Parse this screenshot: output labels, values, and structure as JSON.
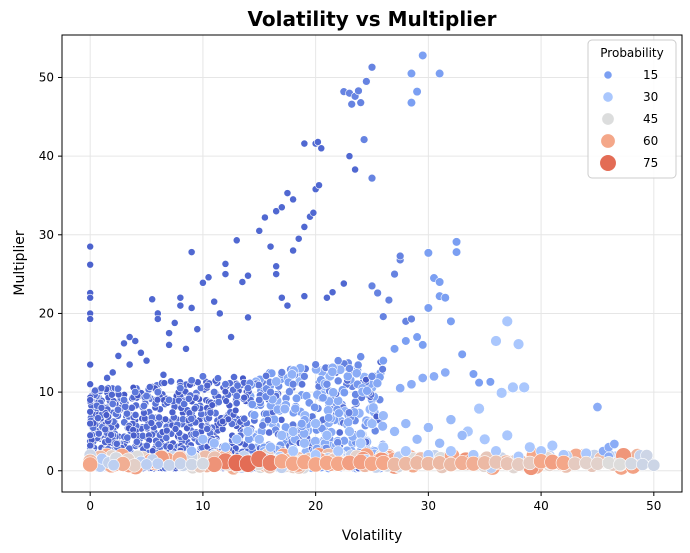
{
  "chart_data": {
    "type": "scatter",
    "title": "Volatility vs Multiplier",
    "xlabel": "Volatility",
    "ylabel": "Multiplier",
    "xlim": [
      -2.5,
      52.5
    ],
    "ylim": [
      -2.7,
      55.4
    ],
    "xticks": [
      0,
      10,
      20,
      30,
      40,
      50
    ],
    "yticks": [
      0,
      10,
      20,
      30,
      40,
      50
    ],
    "grid": true,
    "legend": {
      "title": "Probability",
      "placement": "top-right",
      "entries": [
        {
          "label": "15",
          "value": 15,
          "color": "#7b9ff2"
        },
        {
          "label": "30",
          "value": 30,
          "color": "#aac7fd"
        },
        {
          "label": "45",
          "value": 45,
          "color": "#dcdddd"
        },
        {
          "label": "60",
          "value": 60,
          "color": "#f4a789"
        },
        {
          "label": "75",
          "value": 75,
          "color": "#e36c55"
        }
      ]
    },
    "colormap": "coolwarm",
    "series": [
      {
        "encoding": "[x, y, probability]",
        "points": [
          [
            0,
            28.5,
            4
          ],
          [
            0,
            26.2,
            4
          ],
          [
            0,
            22.6,
            4
          ],
          [
            0,
            22.0,
            4
          ],
          [
            0,
            20.0,
            4
          ],
          [
            0,
            19.3,
            4
          ],
          [
            0,
            13.5,
            4
          ],
          [
            0,
            11.0,
            4
          ],
          [
            0,
            9.0,
            4
          ],
          [
            0,
            7.5,
            4
          ],
          [
            0,
            6.0,
            4
          ],
          [
            0,
            4.5,
            4
          ],
          [
            0,
            3.2,
            4
          ],
          [
            0,
            2.0,
            40
          ],
          [
            0,
            1.2,
            55
          ],
          [
            0,
            0.8,
            60
          ],
          [
            1,
            10.5,
            5
          ],
          [
            1,
            8.0,
            5
          ],
          [
            1.5,
            11.8,
            5
          ],
          [
            2,
            12.5,
            5
          ],
          [
            2.5,
            14.6,
            5
          ],
          [
            3,
            16.2,
            5
          ],
          [
            3.5,
            17.0,
            5
          ],
          [
            3.5,
            13.5,
            5
          ],
          [
            4,
            16.5,
            5
          ],
          [
            4.5,
            15.0,
            5
          ],
          [
            5,
            14.0,
            5
          ],
          [
            5.5,
            21.8,
            5
          ],
          [
            6,
            20.0,
            5
          ],
          [
            6,
            19.3,
            5
          ],
          [
            6.5,
            12.2,
            5
          ],
          [
            7,
            16.0,
            5
          ],
          [
            7,
            17.5,
            5
          ],
          [
            7.5,
            18.8,
            5
          ],
          [
            8,
            21.0,
            5
          ],
          [
            8,
            22.0,
            5
          ],
          [
            8.5,
            15.5,
            5
          ],
          [
            9,
            27.8,
            5
          ],
          [
            9,
            20.7,
            5
          ],
          [
            9.5,
            18.0,
            5
          ],
          [
            10,
            23.9,
            5
          ],
          [
            10.5,
            24.6,
            5
          ],
          [
            11,
            21.5,
            5
          ],
          [
            11.5,
            20.0,
            5
          ],
          [
            12,
            25.0,
            5
          ],
          [
            12,
            26.3,
            5
          ],
          [
            12.5,
            17.0,
            5
          ],
          [
            13,
            29.3,
            5
          ],
          [
            13.5,
            24.0,
            5
          ],
          [
            14,
            24.8,
            5
          ],
          [
            14,
            19.5,
            5
          ],
          [
            15,
            30.5,
            5
          ],
          [
            15.5,
            32.2,
            5
          ],
          [
            16,
            28.5,
            5
          ],
          [
            16.5,
            33.0,
            5
          ],
          [
            17,
            33.5,
            5
          ],
          [
            17.5,
            35.3,
            5
          ],
          [
            18,
            34.5,
            5
          ],
          [
            18,
            28.0,
            5
          ],
          [
            16.5,
            25.0,
            5
          ],
          [
            16.5,
            26.0,
            5
          ],
          [
            17,
            22.0,
            5
          ],
          [
            17.5,
            21.0,
            5
          ],
          [
            18.5,
            29.5,
            5
          ],
          [
            19,
            31.0,
            5
          ],
          [
            19,
            41.6,
            5
          ],
          [
            20,
            41.6,
            5
          ],
          [
            20.5,
            41.0,
            5
          ],
          [
            20.2,
            41.8,
            5
          ],
          [
            19.5,
            32.3,
            5
          ],
          [
            19.8,
            32.8,
            5
          ],
          [
            20,
            35.8,
            5
          ],
          [
            20.3,
            36.3,
            5
          ],
          [
            19,
            22.2,
            5
          ],
          [
            21,
            22.0,
            5
          ],
          [
            21.5,
            22.7,
            5
          ],
          [
            22.5,
            23.8,
            5
          ],
          [
            23,
            40.0,
            5
          ],
          [
            23.5,
            38.3,
            5
          ],
          [
            22.5,
            48.2,
            10
          ],
          [
            23,
            48.0,
            10
          ],
          [
            23.5,
            47.6,
            10
          ],
          [
            23.2,
            46.6,
            10
          ],
          [
            23.8,
            48.3,
            10
          ],
          [
            24,
            46.8,
            10
          ],
          [
            24.5,
            49.5,
            10
          ],
          [
            25,
            51.3,
            10
          ],
          [
            24.3,
            42.1,
            10
          ],
          [
            25,
            37.2,
            10
          ],
          [
            25,
            23.5,
            10
          ],
          [
            25.5,
            22.6,
            10
          ],
          [
            26,
            19.6,
            10
          ],
          [
            26.5,
            21.7,
            10
          ],
          [
            27,
            25.0,
            10
          ],
          [
            27.5,
            26.8,
            10
          ],
          [
            27.5,
            27.3,
            10
          ],
          [
            28,
            19.0,
            10
          ],
          [
            28.5,
            19.3,
            10
          ],
          [
            28.5,
            46.8,
            15
          ],
          [
            28.5,
            50.5,
            15
          ],
          [
            29,
            48.2,
            15
          ],
          [
            29.5,
            52.8,
            15
          ],
          [
            31,
            50.5,
            15
          ],
          [
            30,
            27.7,
            15
          ],
          [
            30.5,
            24.5,
            15
          ],
          [
            31,
            24.0,
            15
          ],
          [
            31,
            22.2,
            15
          ],
          [
            30,
            20.7,
            15
          ],
          [
            31.5,
            22.0,
            15
          ],
          [
            32.5,
            29.1,
            15
          ],
          [
            32.5,
            27.8,
            15
          ],
          [
            32,
            19.0,
            15
          ],
          [
            33,
            14.8,
            15
          ],
          [
            34,
            12.3,
            15
          ],
          [
            34.5,
            11.2,
            15
          ],
          [
            35.5,
            11.3,
            15
          ],
          [
            36,
            16.5,
            30
          ],
          [
            37,
            19.0,
            30
          ],
          [
            38,
            16.1,
            30
          ],
          [
            37.5,
            10.6,
            30
          ],
          [
            38.5,
            10.6,
            30
          ],
          [
            36.5,
            9.9,
            30
          ],
          [
            34.5,
            7.9,
            30
          ],
          [
            33.5,
            5.0,
            30
          ],
          [
            35,
            4.0,
            30
          ],
          [
            37,
            4.5,
            30
          ],
          [
            39,
            3.0,
            30
          ],
          [
            40,
            2.5,
            30
          ],
          [
            41,
            3.2,
            30
          ],
          [
            42,
            2.0,
            30
          ],
          [
            44,
            2.2,
            30
          ],
          [
            45,
            8.1,
            20
          ],
          [
            45.5,
            2.5,
            20
          ],
          [
            46,
            3.0,
            20
          ],
          [
            46.5,
            3.4,
            20
          ],
          [
            46,
            1.8,
            20
          ],
          [
            27.5,
            10.5,
            20
          ],
          [
            28.5,
            11.0,
            20
          ],
          [
            29.5,
            11.8,
            20
          ],
          [
            30.5,
            12.0,
            20
          ],
          [
            31.5,
            12.5,
            20
          ],
          [
            26,
            14.0,
            15
          ],
          [
            27,
            15.5,
            15
          ],
          [
            28,
            16.5,
            15
          ],
          [
            29,
            17.0,
            15
          ],
          [
            29.5,
            16.0,
            15
          ],
          [
            22,
            14.0,
            12
          ],
          [
            23,
            13.0,
            12
          ],
          [
            24,
            14.5,
            12
          ],
          [
            25,
            12.0,
            12
          ],
          [
            21,
            11.0,
            12
          ],
          [
            19,
            12.0,
            10
          ],
          [
            20,
            13.5,
            10
          ],
          [
            18,
            11.0,
            10
          ],
          [
            17,
            12.5,
            10
          ],
          [
            16,
            10.0,
            10
          ],
          [
            15,
            9.0,
            8
          ],
          [
            14,
            10.5,
            8
          ],
          [
            13,
            9.5,
            8
          ],
          [
            12,
            11.0,
            8
          ],
          [
            11,
            10.0,
            8
          ],
          [
            10,
            12.0,
            8
          ],
          [
            9,
            11.5,
            8
          ],
          [
            8,
            10.5,
            8
          ],
          [
            7,
            9.0,
            8
          ],
          [
            6,
            10.0,
            8
          ],
          [
            5,
            9.5,
            8
          ],
          [
            4,
            10.0,
            8
          ],
          [
            3,
            9.0,
            8
          ],
          [
            2,
            8.5,
            8
          ],
          [
            26,
            7.0,
            25
          ],
          [
            28,
            6.0,
            25
          ],
          [
            30,
            5.5,
            25
          ],
          [
            32,
            6.5,
            25
          ],
          [
            33,
            4.5,
            25
          ],
          [
            31,
            3.5,
            25
          ],
          [
            29,
            4.0,
            25
          ],
          [
            27,
            5.0,
            25
          ],
          [
            25,
            6.0,
            25
          ],
          [
            23,
            5.0,
            25
          ],
          [
            21,
            4.5,
            25
          ],
          [
            20,
            6.0,
            25
          ],
          [
            19,
            3.5,
            25
          ],
          [
            18,
            5.0,
            25
          ],
          [
            17,
            4.5,
            25
          ],
          [
            16,
            3.0,
            25
          ],
          [
            15,
            4.0,
            25
          ],
          [
            14,
            5.0,
            25
          ],
          [
            13,
            4.0,
            25
          ],
          [
            12,
            3.0,
            25
          ],
          [
            11,
            3.5,
            25
          ],
          [
            10,
            4.0,
            25
          ],
          [
            9,
            2.5,
            25
          ],
          [
            24,
            3.5,
            30
          ],
          [
            26,
            3.0,
            30
          ],
          [
            28,
            2.5,
            30
          ],
          [
            30,
            2.0,
            30
          ],
          [
            32,
            2.5,
            30
          ],
          [
            34,
            2.0,
            30
          ],
          [
            36,
            2.5,
            30
          ],
          [
            38,
            1.8,
            30
          ],
          [
            22,
            2.5,
            30
          ],
          [
            20,
            2.0,
            30
          ],
          [
            18,
            2.5,
            30
          ],
          [
            12,
            1.2,
            70
          ],
          [
            13,
            1.0,
            75
          ],
          [
            14,
            0.9,
            75
          ],
          [
            15,
            1.5,
            72
          ],
          [
            16,
            1.0,
            70
          ],
          [
            11,
            0.8,
            65
          ],
          [
            17,
            1.2,
            60
          ],
          [
            18,
            0.9,
            60
          ],
          [
            19,
            1.1,
            60
          ],
          [
            20,
            0.8,
            60
          ],
          [
            21,
            1.0,
            60
          ],
          [
            22,
            0.9,
            60
          ],
          [
            23,
            1.0,
            62
          ],
          [
            24,
            1.1,
            62
          ],
          [
            25,
            0.9,
            60
          ],
          [
            26,
            1.0,
            60
          ],
          [
            27,
            0.8,
            55
          ],
          [
            28,
            0.9,
            55
          ],
          [
            29,
            1.0,
            55
          ],
          [
            30,
            0.9,
            55
          ],
          [
            31,
            1.0,
            55
          ],
          [
            32,
            0.8,
            55
          ],
          [
            33,
            1.0,
            58
          ],
          [
            34,
            0.9,
            58
          ],
          [
            35,
            1.0,
            55
          ],
          [
            36,
            1.1,
            52
          ],
          [
            37,
            0.9,
            52
          ],
          [
            38,
            0.8,
            50
          ],
          [
            39,
            1.0,
            50
          ],
          [
            40,
            1.2,
            60
          ],
          [
            41,
            1.1,
            62
          ],
          [
            42,
            1.0,
            60
          ],
          [
            43,
            0.9,
            50
          ],
          [
            44,
            1.0,
            48
          ],
          [
            45,
            0.9,
            48
          ],
          [
            46,
            1.0,
            45
          ],
          [
            47,
            0.8,
            45
          ],
          [
            48,
            0.9,
            42
          ],
          [
            49,
            0.8,
            40
          ],
          [
            50,
            0.7,
            40
          ],
          [
            5,
            0.8,
            35
          ],
          [
            6,
            0.9,
            35
          ],
          [
            7,
            0.7,
            38
          ],
          [
            8,
            0.9,
            38
          ],
          [
            9,
            0.8,
            40
          ],
          [
            10,
            0.9,
            42
          ]
        ]
      }
    ]
  }
}
